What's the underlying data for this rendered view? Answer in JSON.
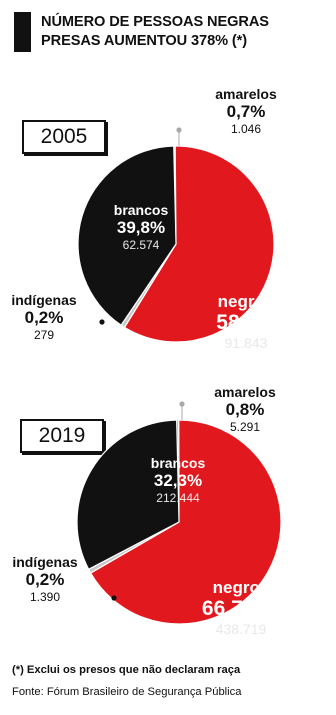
{
  "title": "NÚMERO DE PESSOAS NEGRAS PRESAS AUMENTOU 378% (*)",
  "footnote": "(*) Exclui os presos que não declaram raça",
  "source": "Fonte: Fórum Brasileiro de Segurança Pública",
  "colors": {
    "negros": "#e1191e",
    "brancos": "#111111",
    "amarelos": "#a7a9ac",
    "indigenas": "#c8c8c8"
  },
  "chart_data": [
    {
      "type": "pie",
      "year_label": "2005",
      "slices": [
        {
          "key": "amarelos",
          "name": "amarelos",
          "pct_label": "0,7%",
          "value": 0.7,
          "count": "1.046"
        },
        {
          "key": "negros",
          "name": "negros",
          "pct_label": "58,4%",
          "value": 58.4,
          "count": "91.843"
        },
        {
          "key": "indigenas",
          "name": "indígenas",
          "pct_label": "0,2%",
          "value": 0.2,
          "count": "279"
        },
        {
          "key": "brancos",
          "name": "brancos",
          "pct_label": "39,8%",
          "value": 39.8,
          "count": "62.574"
        }
      ]
    },
    {
      "type": "pie",
      "year_label": "2019",
      "slices": [
        {
          "key": "amarelos",
          "name": "amarelos",
          "pct_label": "0,8%",
          "value": 0.8,
          "count": "5.291"
        },
        {
          "key": "negros",
          "name": "negros",
          "pct_label": "66,7%%",
          "value": 66.7,
          "count": "438.719"
        },
        {
          "key": "indigenas",
          "name": "indígenas",
          "pct_label": "0,2%",
          "value": 0.2,
          "count": "1.390"
        },
        {
          "key": "brancos",
          "name": "brancos",
          "pct_label": "32,3%",
          "value": 32.3,
          "count": "212.444"
        }
      ]
    }
  ]
}
